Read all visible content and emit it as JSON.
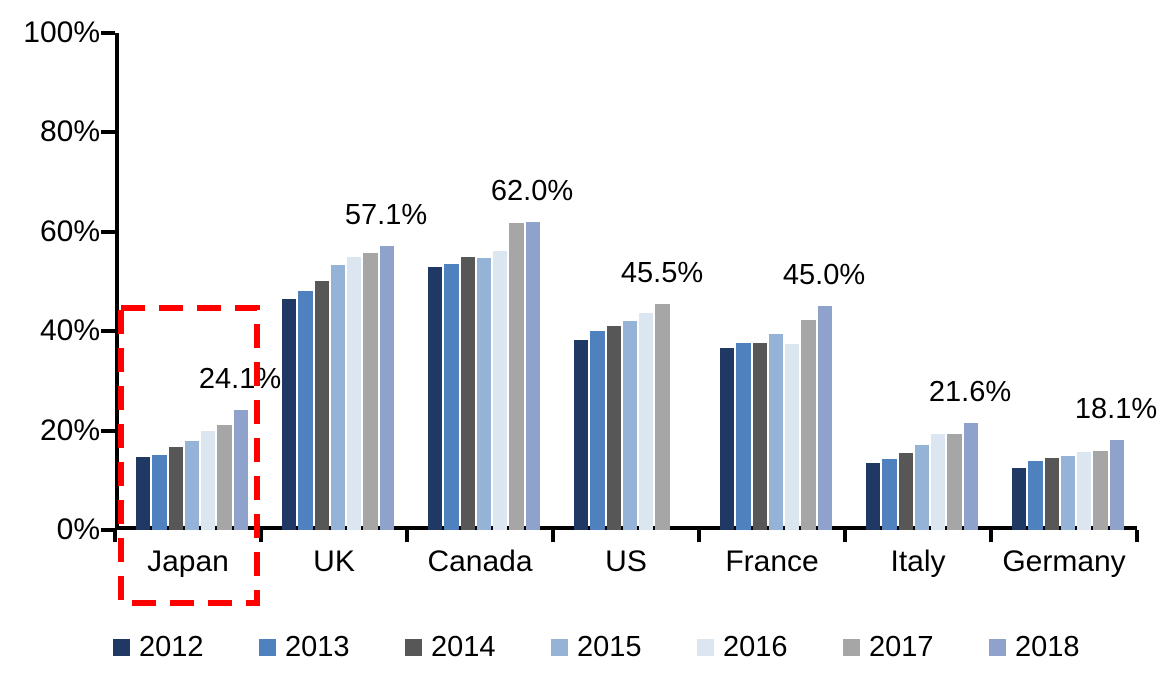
{
  "chart_data": {
    "type": "bar",
    "title": "",
    "xlabel": "",
    "ylabel": "",
    "categories": [
      "Japan",
      "UK",
      "Canada",
      "US",
      "France",
      "Italy",
      "Germany"
    ],
    "series": [
      {
        "name": "2012",
        "color": "#1F3864",
        "values": [
          14.7,
          46.4,
          53.0,
          38.2,
          36.6,
          13.4,
          12.4
        ]
      },
      {
        "name": "2013",
        "color": "#4E81BD",
        "values": [
          15.0,
          48.0,
          53.5,
          40.0,
          37.7,
          14.2,
          13.9
        ]
      },
      {
        "name": "2014",
        "color": "#575757",
        "values": [
          16.6,
          50.0,
          54.9,
          41.1,
          37.6,
          15.5,
          14.4
        ]
      },
      {
        "name": "2015",
        "color": "#95B3D7",
        "values": [
          18.0,
          53.3,
          54.7,
          42.1,
          39.4,
          17.2,
          14.8
        ]
      },
      {
        "name": "2016",
        "color": "#DCE6F1",
        "values": [
          20.0,
          54.9,
          56.2,
          43.6,
          37.5,
          19.3,
          15.6
        ]
      },
      {
        "name": "2017",
        "color": "#A6A6A6",
        "values": [
          21.1,
          55.8,
          61.7,
          45.5,
          42.3,
          19.3,
          15.9
        ]
      },
      {
        "name": "2018",
        "color": "#8FA2CC",
        "values": [
          24.1,
          57.1,
          62.0,
          null,
          45.0,
          21.6,
          18.1
        ]
      }
    ],
    "data_labels": [
      {
        "category": "Japan",
        "text": "24.1%"
      },
      {
        "category": "UK",
        "text": "57.1%"
      },
      {
        "category": "Canada",
        "text": "62.0%"
      },
      {
        "category": "US",
        "text": "45.5%"
      },
      {
        "category": "France",
        "text": "45.0%"
      },
      {
        "category": "Italy",
        "text": "21.6%"
      },
      {
        "category": "Germany",
        "text": "18.1%"
      }
    ],
    "y_axis": {
      "tick_labels": [
        "0%",
        "20%",
        "40%",
        "60%",
        "80%",
        "100%"
      ],
      "tick_values": [
        0,
        20,
        40,
        60,
        80,
        100
      ],
      "min": 0,
      "max": 100
    },
    "legend": {
      "position": "bottom",
      "entries": [
        "2012",
        "2013",
        "2014",
        "2015",
        "2016",
        "2017",
        "2018"
      ]
    },
    "grid": false,
    "axis_color": "#000000",
    "highlight": {
      "category": "Japan",
      "shape": "dashed-rectangle",
      "color": "#FF0000"
    }
  }
}
